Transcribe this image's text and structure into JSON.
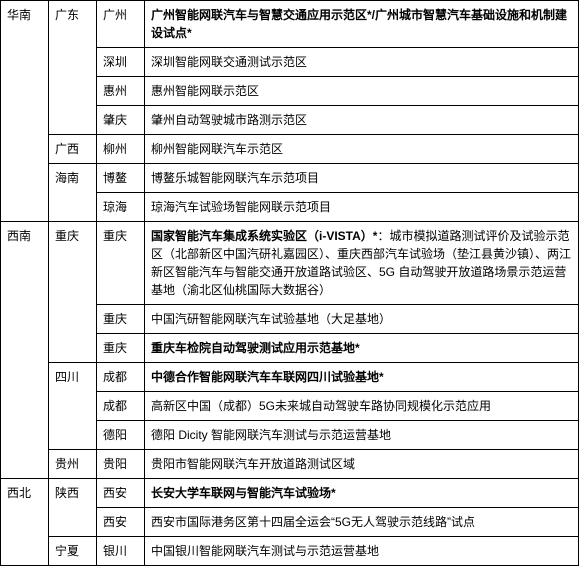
{
  "rows": [
    {
      "region": "华南",
      "province": "广东",
      "city": "广州",
      "desc": "<b>广州智能网联汽车与智慧交通应用示范区*/广州城市智慧汽车基础设施和机制建设试点*</b>"
    },
    {
      "city": "深圳",
      "desc": "深圳智能网联交通测试示范区"
    },
    {
      "city": "惠州",
      "desc": "惠州智能网联示范区"
    },
    {
      "city": "肇庆",
      "desc": "肇州自动驾驶城市路测示范区"
    },
    {
      "province": "广西",
      "city": "柳州",
      "desc": "柳州智能网联汽车示范区"
    },
    {
      "province": "海南",
      "city": "博鳌",
      "desc": "博鳌乐城智能网联汽车示范项目"
    },
    {
      "city": "琼海",
      "desc": "琼海汽车试验场智能网联示范项目"
    },
    {
      "region": "西南",
      "province": "重庆",
      "city": "重庆",
      "desc": "<b>国家智能汽车集成系统实验区（i-VISTA）*</b>：城市模拟道路测试评价及试验示范区（北部新区中国汽研礼嘉园区）、重庆西部汽车试验场（垫江县黄沙镇）、两江新区智能汽车与智能交通开放道路试验区、5G 自动驾驶开放道路场景示范运营基地（渝北区仙桃国际大数据谷）"
    },
    {
      "city": "重庆",
      "desc": "中国汽研智能网联汽车试验基地（大足基地）"
    },
    {
      "city": "重庆",
      "desc": "<b>重庆车检院自动驾驶测试应用示范基地*</b>"
    },
    {
      "province": "四川",
      "city": "成都",
      "desc": "<b>中德合作智能网联汽车车联网四川试验基地*</b>"
    },
    {
      "city": "成都",
      "desc": "高新区中国（成都）5G未来城自动驾驶车路协同规模化示范应用"
    },
    {
      "city": "德阳",
      "desc": "德阳 Dicity 智能网联汽车测试与示范运营基地"
    },
    {
      "province": "贵州",
      "city": "贵阳",
      "desc": "贵阳市智能网联汽车开放道路测试区域"
    },
    {
      "region": "西北",
      "province": "陕西",
      "city": "西安",
      "desc": "<b>长安大学车联网与智能汽车试验场*</b>"
    },
    {
      "city": "西安",
      "desc": "西安市国际港务区第十四届全运会“5G无人驾驶示范线路”试点"
    },
    {
      "province": "宁夏",
      "city": "银川",
      "desc": "中国银川智能网联汽车测试与示范运营基地"
    }
  ],
  "spans": {
    "region": [
      {
        "start": 0,
        "span": 7
      },
      {
        "start": 7,
        "span": 7
      },
      {
        "start": 14,
        "span": 3
      }
    ],
    "province": [
      {
        "start": 0,
        "span": 4
      },
      {
        "start": 4,
        "span": 1
      },
      {
        "start": 5,
        "span": 2
      },
      {
        "start": 7,
        "span": 3
      },
      {
        "start": 10,
        "span": 3
      },
      {
        "start": 13,
        "span": 1
      },
      {
        "start": 14,
        "span": 2
      },
      {
        "start": 16,
        "span": 1
      }
    ]
  }
}
